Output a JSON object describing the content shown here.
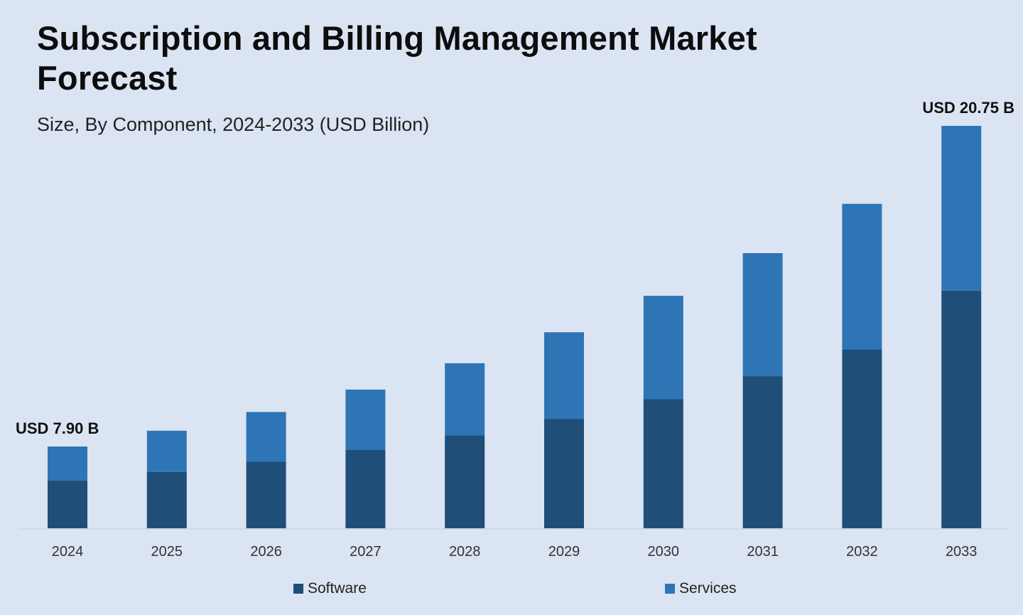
{
  "chart_data": {
    "type": "bar",
    "stacked": true,
    "title": "Subscription and Billing Management Market Forecast",
    "subtitle": "Size, By Component, 2024-2033 (USD Billion)",
    "xlabel": "",
    "ylabel": "USD Billion",
    "categories": [
      "2024",
      "2025",
      "2026",
      "2027",
      "2028",
      "2029",
      "2030",
      "2031",
      "2032",
      "2033"
    ],
    "series": [
      {
        "name": "Software",
        "color": "#1f4e79",
        "values": [
          4.6,
          5.08,
          5.59,
          6.16,
          6.8,
          7.49,
          8.26,
          9.11,
          10.04,
          12.25
        ]
      },
      {
        "name": "Services",
        "color": "#2e75b6",
        "values": [
          3.3,
          3.71,
          4.19,
          4.72,
          5.29,
          5.93,
          6.62,
          7.37,
          8.17,
          8.5
        ]
      }
    ],
    "totals": [
      7.9,
      8.79,
      9.78,
      10.88,
      12.09,
      13.42,
      14.88,
      16.48,
      18.21,
      20.75
    ],
    "annotations": [
      {
        "category": "2024",
        "text": "USD 7.90 B"
      },
      {
        "category": "2033",
        "text": "USD 20.75 B"
      }
    ],
    "grid": false,
    "legend": "bottom"
  }
}
